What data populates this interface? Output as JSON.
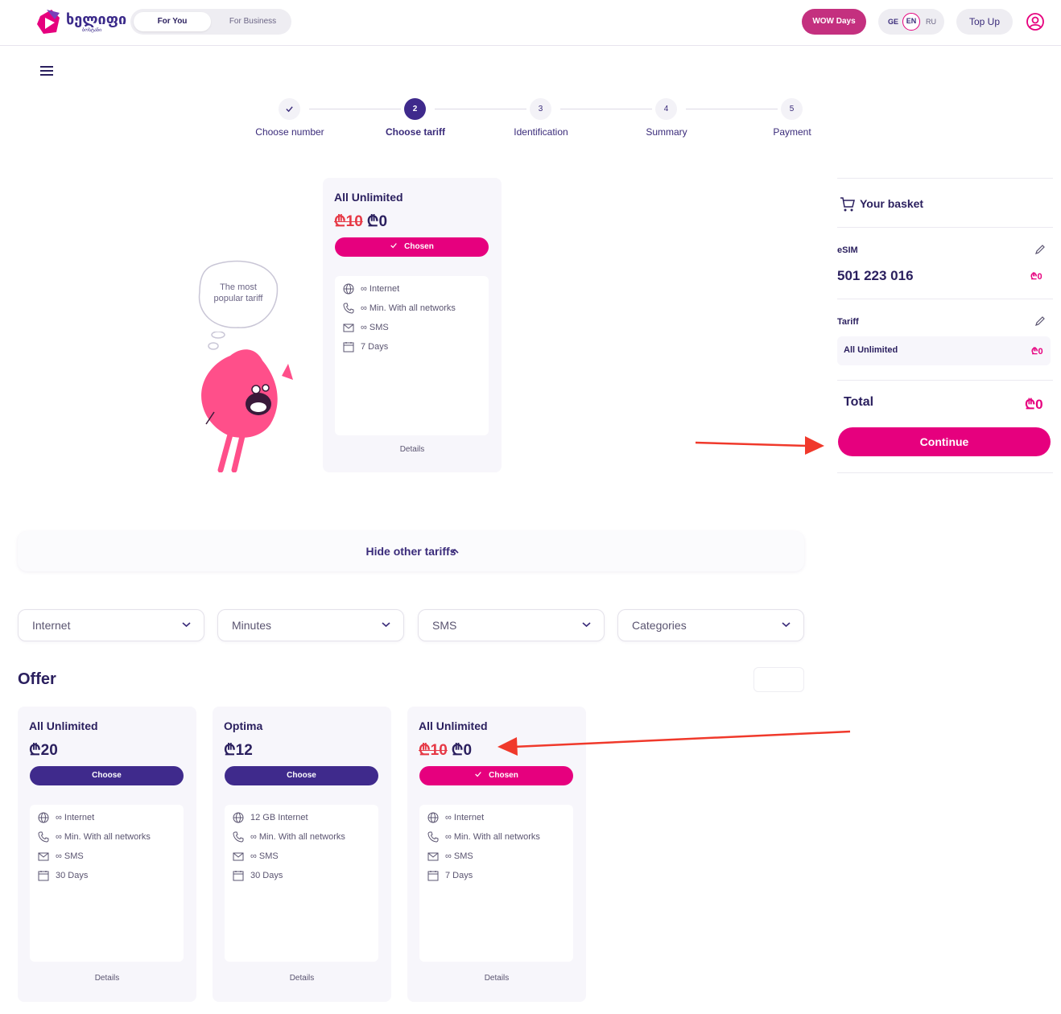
{
  "header": {
    "logo_text": "ხელიფი",
    "logo_sub": "ბოსტანი",
    "segment_active": "For You",
    "segment_other": "For Business",
    "wow_label": "WOW Days",
    "lang_ge": "GE",
    "lang_en": "EN",
    "lang_ru": "RU",
    "topup_label": "Top Up"
  },
  "steps": [
    {
      "num": "",
      "label": "Choose number"
    },
    {
      "num": "2",
      "label": "Choose tariff"
    },
    {
      "num": "3",
      "label": "Identification"
    },
    {
      "num": "4",
      "label": "Summary"
    },
    {
      "num": "5",
      "label": "Payment"
    }
  ],
  "bubble": {
    "line1": "The most",
    "line2": "popular tariff"
  },
  "selected_card": {
    "name": "All Unlimited",
    "old_price": "₾10",
    "price": "₾0",
    "button": "Chosen",
    "features": [
      "∞ Internet",
      "∞ Min. With all networks",
      "∞ SMS",
      "7 Days"
    ],
    "details": "Details"
  },
  "basket": {
    "title": "Your basket",
    "esim_label": "eSIM",
    "number": "501 223 016",
    "number_price": "₾0",
    "tariff_label": "Tariff",
    "tariff_name": "All Unlimited",
    "tariff_price": "₾0",
    "total_label": "Total",
    "total_price": "₾0",
    "continue_label": "Continue"
  },
  "hide_label": "Hide other tariffs",
  "filters": [
    "Internet",
    "Minutes",
    "SMS",
    "Categories"
  ],
  "offer_title": "Offer",
  "offers": [
    {
      "name": "All Unlimited",
      "old_price": "",
      "price": "₾20",
      "button": "Choose",
      "features": [
        "∞ Internet",
        "∞ Min. With all networks",
        "∞ SMS",
        "30 Days"
      ],
      "details": "Details"
    },
    {
      "name": "Optima",
      "old_price": "",
      "price": "₾12",
      "button": "Choose",
      "features": [
        "12 GB Internet",
        "∞ Min. With all networks",
        "∞ SMS",
        "30 Days"
      ],
      "details": "Details"
    },
    {
      "name": "All Unlimited",
      "old_price": "₾10",
      "price": "₾0",
      "button": "Chosen",
      "features": [
        "∞ Internet",
        "∞ Min. With all networks",
        "∞ SMS",
        "7 Days"
      ],
      "details": "Details"
    }
  ],
  "colors": {
    "brand_purple": "#3f2a8c",
    "brand_pink": "#e6007e",
    "strike_red": "#e63946",
    "annotation_arrow": "#f0392b"
  }
}
